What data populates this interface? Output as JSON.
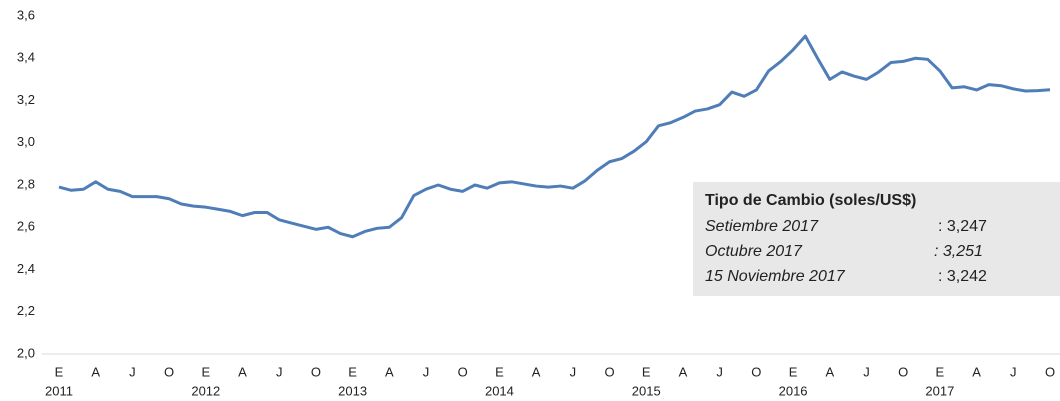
{
  "chart_data": {
    "type": "line",
    "categories": [
      "E",
      null,
      null,
      "A",
      null,
      null,
      "J",
      null,
      null,
      "O",
      null,
      null,
      "E",
      null,
      null,
      "A",
      null,
      null,
      "J",
      null,
      null,
      "O",
      null,
      null,
      "E",
      null,
      null,
      "A",
      null,
      null,
      "J",
      null,
      null,
      "O",
      null,
      null,
      "E",
      null,
      null,
      "A",
      null,
      null,
      "J",
      null,
      null,
      "O",
      null,
      null,
      "E",
      null,
      null,
      "A",
      null,
      null,
      "J",
      null,
      null,
      "O",
      null,
      null,
      "E",
      null,
      null,
      "A",
      null,
      null,
      "J",
      null,
      null,
      "O",
      null,
      null,
      "E",
      null,
      null,
      "A",
      null,
      null,
      "J",
      null,
      null,
      "O"
    ],
    "years": [
      "2011",
      "2012",
      "2013",
      "2014",
      "2015",
      "2016",
      "2017"
    ],
    "series": [
      {
        "color": "#4f7db8",
        "values": [
          2.79,
          2.775,
          2.78,
          2.815,
          2.78,
          2.77,
          2.745,
          2.745,
          2.745,
          2.735,
          2.71,
          2.7,
          2.695,
          2.685,
          2.675,
          2.655,
          2.67,
          2.67,
          2.635,
          2.62,
          2.605,
          2.59,
          2.6,
          2.57,
          2.555,
          2.58,
          2.595,
          2.6,
          2.645,
          2.75,
          2.78,
          2.8,
          2.78,
          2.77,
          2.8,
          2.785,
          2.81,
          2.815,
          2.805,
          2.795,
          2.79,
          2.795,
          2.785,
          2.82,
          2.87,
          2.91,
          2.925,
          2.96,
          3.005,
          3.08,
          3.095,
          3.12,
          3.15,
          3.16,
          3.18,
          3.24,
          3.22,
          3.25,
          3.34,
          3.385,
          3.44,
          3.505,
          3.4,
          3.3,
          3.335,
          3.315,
          3.3,
          3.335,
          3.38,
          3.385,
          3.4,
          3.395,
          3.34,
          3.26,
          3.265,
          3.25,
          3.275,
          3.27,
          3.255,
          3.245,
          3.247,
          3.251
        ]
      }
    ],
    "ylim": [
      2.0,
      3.6
    ],
    "yticks": [
      {
        "value": 2.0,
        "label": "2,0"
      },
      {
        "value": 2.2,
        "label": "2,2"
      },
      {
        "value": 2.4,
        "label": "2,4"
      },
      {
        "value": 2.6,
        "label": "2,6"
      },
      {
        "value": 2.8,
        "label": "2,8"
      },
      {
        "value": 3.0,
        "label": "3,0"
      },
      {
        "value": 3.2,
        "label": "3,2"
      },
      {
        "value": 3.4,
        "label": "3,4"
      },
      {
        "value": 3.6,
        "label": "3,6"
      }
    ],
    "annotation": {
      "title": "Tipo de Cambio (soles/US$)",
      "rows": [
        [
          "Setiembre 2017",
          ": 3,247"
        ],
        [
          "Octubre  2017",
          ": 3,251"
        ],
        [
          "15 Noviembre 2017",
          ": 3,242"
        ]
      ]
    }
  }
}
